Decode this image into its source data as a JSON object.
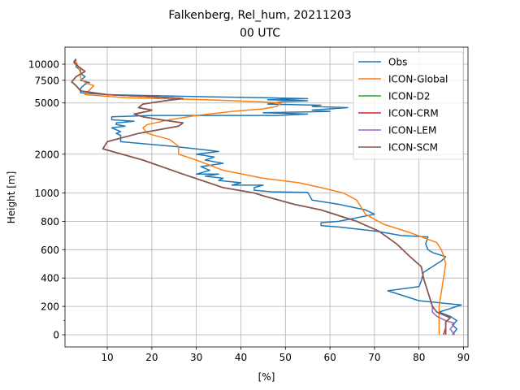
{
  "chart_data": {
    "type": "line",
    "title": "Falkenberg, Rel_hum, 20211203",
    "subtitle": "00 UTC",
    "xlabel": "[%]",
    "ylabel": "Height [m]",
    "xlim": [
      0.5,
      91
    ],
    "x_ticks": [
      10,
      20,
      30,
      40,
      50,
      60,
      70,
      80,
      90
    ],
    "y_ticks": [
      {
        "value": 0,
        "label": "0"
      },
      {
        "value": 200,
        "label": "200"
      },
      {
        "value": 400,
        "label": "400"
      },
      {
        "value": 600,
        "label": "600"
      },
      {
        "value": 800,
        "label": "800"
      },
      {
        "value": 1000,
        "label": "1000"
      },
      {
        "value": 2000,
        "label": "2000"
      },
      {
        "value": 5000,
        "label": "5000"
      },
      {
        "value": 7500,
        "label": "7500"
      },
      {
        "value": 10000,
        "label": "10000"
      }
    ],
    "y_minor_ticks": [
      100
    ],
    "grid": true,
    "legend_position": "top-right",
    "series": [
      {
        "name": "Obs",
        "color": "#1f77b4",
        "points": [
          [
            87.5,
            0
          ],
          [
            88.5,
            40
          ],
          [
            87.5,
            70
          ],
          [
            88.5,
            100
          ],
          [
            87,
            130
          ],
          [
            84.5,
            160
          ],
          [
            89.5,
            210
          ],
          [
            80,
            240
          ],
          [
            73,
            310
          ],
          [
            80,
            340
          ],
          [
            80.5,
            380
          ],
          [
            81,
            440
          ],
          [
            82.5,
            470
          ],
          [
            85,
            520
          ],
          [
            86,
            550
          ],
          [
            83,
            580
          ],
          [
            82,
            600
          ],
          [
            81.5,
            640
          ],
          [
            82,
            690
          ],
          [
            76,
            700
          ],
          [
            70.5,
            730
          ],
          [
            62,
            760
          ],
          [
            58,
            770
          ],
          [
            58,
            790
          ],
          [
            62,
            800
          ],
          [
            70,
            850
          ],
          [
            68,
            880
          ],
          [
            62,
            920
          ],
          [
            56,
            950
          ],
          [
            55,
            1010
          ],
          [
            47,
            1020
          ],
          [
            43,
            1050
          ],
          [
            43,
            1100
          ],
          [
            45,
            1150
          ],
          [
            38,
            1150
          ],
          [
            40,
            1200
          ],
          [
            35,
            1250
          ],
          [
            36,
            1300
          ],
          [
            32,
            1350
          ],
          [
            35,
            1400
          ],
          [
            30,
            1400
          ],
          [
            33,
            1500
          ],
          [
            31,
            1600
          ],
          [
            36,
            1700
          ],
          [
            32,
            1800
          ],
          [
            34,
            1900
          ],
          [
            30,
            2000
          ],
          [
            35,
            2100
          ],
          [
            25,
            2300
          ],
          [
            13,
            2500
          ],
          [
            13,
            2800
          ],
          [
            12,
            2900
          ],
          [
            13,
            3000
          ],
          [
            11,
            3200
          ],
          [
            14,
            3300
          ],
          [
            12,
            3400
          ],
          [
            12,
            3500
          ],
          [
            16,
            3600
          ],
          [
            11,
            3700
          ],
          [
            11,
            3900
          ],
          [
            20,
            4000
          ],
          [
            48,
            4000
          ],
          [
            55,
            4100
          ],
          [
            45,
            4200
          ],
          [
            60,
            4300
          ],
          [
            56,
            4400
          ],
          [
            60,
            4500
          ],
          [
            64,
            4600
          ],
          [
            56,
            4700
          ],
          [
            58,
            4800
          ],
          [
            46,
            4900
          ],
          [
            49,
            5100
          ],
          [
            55,
            5200
          ],
          [
            46,
            5300
          ],
          [
            55,
            5400
          ],
          [
            45,
            5500
          ],
          [
            30,
            5600
          ],
          [
            10,
            5800
          ],
          [
            4,
            6000
          ],
          [
            4,
            6500
          ],
          [
            5,
            7000
          ],
          [
            6,
            7200
          ],
          [
            4,
            7500
          ],
          [
            5,
            8000
          ],
          [
            4,
            8500
          ],
          [
            4,
            9000
          ],
          [
            3,
            9500
          ],
          [
            3,
            10000
          ],
          [
            2.5,
            10500
          ],
          [
            3,
            11000
          ]
        ]
      },
      {
        "name": "ICON-Global",
        "color": "#ff7f0e",
        "points": [
          [
            84.5,
            0
          ],
          [
            84.5,
            100
          ],
          [
            84.5,
            200
          ],
          [
            85.5,
            400
          ],
          [
            86,
            500
          ],
          [
            85.5,
            560
          ],
          [
            85,
            600
          ],
          [
            84,
            650
          ],
          [
            78,
            720
          ],
          [
            72,
            780
          ],
          [
            68,
            850
          ],
          [
            66,
            950
          ],
          [
            63,
            1000
          ],
          [
            58,
            1100
          ],
          [
            53,
            1200
          ],
          [
            45,
            1300
          ],
          [
            36,
            1500
          ],
          [
            30,
            1800
          ],
          [
            26,
            2000
          ],
          [
            26,
            2300
          ],
          [
            24,
            2600
          ],
          [
            19,
            2900
          ],
          [
            18,
            3200
          ],
          [
            19,
            3400
          ],
          [
            24,
            3700
          ],
          [
            30,
            4000
          ],
          [
            38,
            4300
          ],
          [
            45,
            4500
          ],
          [
            48,
            4700
          ],
          [
            49,
            5000
          ],
          [
            45,
            5100
          ],
          [
            32,
            5300
          ],
          [
            14,
            5500
          ],
          [
            5,
            5800
          ],
          [
            6,
            6300
          ],
          [
            7,
            6800
          ],
          [
            5,
            7200
          ],
          [
            4,
            7800
          ],
          [
            4,
            8500
          ],
          [
            3.5,
            9500
          ],
          [
            3,
            10500
          ]
        ]
      },
      {
        "name": "ICON-D2",
        "color": "#2ca02c",
        "points": [
          [
            86,
            0
          ],
          [
            86,
            50
          ],
          [
            86,
            90
          ],
          [
            87,
            120
          ],
          [
            84,
            160
          ],
          [
            83,
            200
          ],
          [
            82,
            300
          ],
          [
            81,
            400
          ],
          [
            80.5,
            480
          ],
          [
            78,
            550
          ],
          [
            75,
            640
          ],
          [
            71,
            730
          ],
          [
            66,
            800
          ],
          [
            58,
            880
          ],
          [
            52,
            920
          ],
          [
            45,
            980
          ],
          [
            43,
            1000
          ],
          [
            36,
            1100
          ],
          [
            27,
            1400
          ],
          [
            18,
            1800
          ],
          [
            9,
            2200
          ],
          [
            10,
            2500
          ],
          [
            17,
            2900
          ],
          [
            26,
            3300
          ],
          [
            27,
            3500
          ],
          [
            22,
            3700
          ],
          [
            18,
            3900
          ],
          [
            16,
            4100
          ],
          [
            19,
            4300
          ],
          [
            20,
            4400
          ],
          [
            17,
            4600
          ],
          [
            18,
            4900
          ],
          [
            23,
            5200
          ],
          [
            27,
            5400
          ],
          [
            24,
            5500
          ],
          [
            10,
            5800
          ],
          [
            4,
            6200
          ],
          [
            3,
            6800
          ],
          [
            2,
            7300
          ],
          [
            3,
            8000
          ],
          [
            5,
            8800
          ],
          [
            3.5,
            9600
          ],
          [
            2.5,
            10300
          ],
          [
            3,
            10800
          ]
        ]
      },
      {
        "name": "ICON-CRM",
        "color": "#d62728",
        "points": [
          [
            85.5,
            0
          ],
          [
            86,
            50
          ],
          [
            86,
            90
          ],
          [
            87,
            120
          ],
          [
            84,
            160
          ],
          [
            83,
            200
          ],
          [
            82,
            300
          ],
          [
            81,
            400
          ],
          [
            80.5,
            480
          ],
          [
            78,
            550
          ],
          [
            75,
            640
          ],
          [
            71,
            730
          ],
          [
            66,
            800
          ],
          [
            58,
            880
          ],
          [
            52,
            920
          ],
          [
            45,
            980
          ],
          [
            43,
            1000
          ],
          [
            36,
            1100
          ],
          [
            27,
            1400
          ],
          [
            18,
            1800
          ],
          [
            9,
            2200
          ],
          [
            10,
            2500
          ],
          [
            17,
            2900
          ],
          [
            26,
            3300
          ],
          [
            27,
            3500
          ],
          [
            22,
            3700
          ],
          [
            18,
            3900
          ],
          [
            16,
            4100
          ],
          [
            19,
            4300
          ],
          [
            20,
            4400
          ],
          [
            17,
            4600
          ],
          [
            18,
            4900
          ],
          [
            23,
            5200
          ],
          [
            27,
            5400
          ],
          [
            24,
            5500
          ],
          [
            10,
            5800
          ],
          [
            4,
            6200
          ],
          [
            3,
            6800
          ],
          [
            2,
            7300
          ],
          [
            3,
            8000
          ],
          [
            5,
            8800
          ],
          [
            3.5,
            9600
          ],
          [
            2.5,
            10300
          ],
          [
            3,
            10800
          ]
        ]
      },
      {
        "name": "ICON-LEM",
        "color": "#9467bd",
        "points": [
          [
            88,
            0
          ],
          [
            87,
            40
          ],
          [
            88,
            80
          ],
          [
            86,
            100
          ],
          [
            84,
            130
          ],
          [
            83,
            160
          ],
          [
            83,
            200
          ],
          [
            82,
            300
          ],
          [
            81,
            400
          ],
          [
            80.5,
            480
          ],
          [
            78,
            550
          ],
          [
            75,
            640
          ],
          [
            71,
            730
          ],
          [
            66,
            800
          ],
          [
            58,
            880
          ],
          [
            52,
            920
          ],
          [
            45,
            980
          ],
          [
            43,
            1000
          ],
          [
            36,
            1100
          ],
          [
            27,
            1400
          ],
          [
            18,
            1800
          ],
          [
            9,
            2200
          ],
          [
            10,
            2500
          ],
          [
            17,
            2900
          ],
          [
            26,
            3300
          ],
          [
            27,
            3500
          ],
          [
            22,
            3700
          ],
          [
            18,
            3900
          ],
          [
            16,
            4100
          ],
          [
            19,
            4300
          ],
          [
            20,
            4400
          ],
          [
            17,
            4600
          ],
          [
            18,
            4900
          ],
          [
            23,
            5200
          ],
          [
            27,
            5400
          ],
          [
            24,
            5500
          ],
          [
            10,
            5800
          ],
          [
            4,
            6200
          ],
          [
            3,
            6800
          ],
          [
            2,
            7300
          ],
          [
            3,
            8000
          ],
          [
            5,
            8800
          ],
          [
            3.5,
            9600
          ],
          [
            2.5,
            10300
          ],
          [
            3,
            10800
          ]
        ]
      },
      {
        "name": "ICON-SCM",
        "color": "#8c564b",
        "points": [
          [
            86,
            0
          ],
          [
            86,
            50
          ],
          [
            86,
            90
          ],
          [
            87,
            120
          ],
          [
            84,
            160
          ],
          [
            83,
            200
          ],
          [
            82,
            300
          ],
          [
            81,
            400
          ],
          [
            80.5,
            480
          ],
          [
            78,
            550
          ],
          [
            75,
            640
          ],
          [
            71,
            730
          ],
          [
            66,
            800
          ],
          [
            58,
            880
          ],
          [
            52,
            920
          ],
          [
            45,
            980
          ],
          [
            43,
            1000
          ],
          [
            36,
            1100
          ],
          [
            27,
            1400
          ],
          [
            18,
            1800
          ],
          [
            9,
            2200
          ],
          [
            10,
            2500
          ],
          [
            17,
            2900
          ],
          [
            26,
            3300
          ],
          [
            27,
            3500
          ],
          [
            22,
            3700
          ],
          [
            18,
            3900
          ],
          [
            16,
            4100
          ],
          [
            19,
            4300
          ],
          [
            20,
            4400
          ],
          [
            17,
            4600
          ],
          [
            18,
            4900
          ],
          [
            23,
            5200
          ],
          [
            27,
            5400
          ],
          [
            24,
            5500
          ],
          [
            10,
            5800
          ],
          [
            4,
            6200
          ],
          [
            3,
            6800
          ],
          [
            2,
            7300
          ],
          [
            3,
            8000
          ],
          [
            5,
            8800
          ],
          [
            3.5,
            9600
          ],
          [
            2.5,
            10300
          ],
          [
            3,
            10800
          ]
        ]
      }
    ]
  }
}
